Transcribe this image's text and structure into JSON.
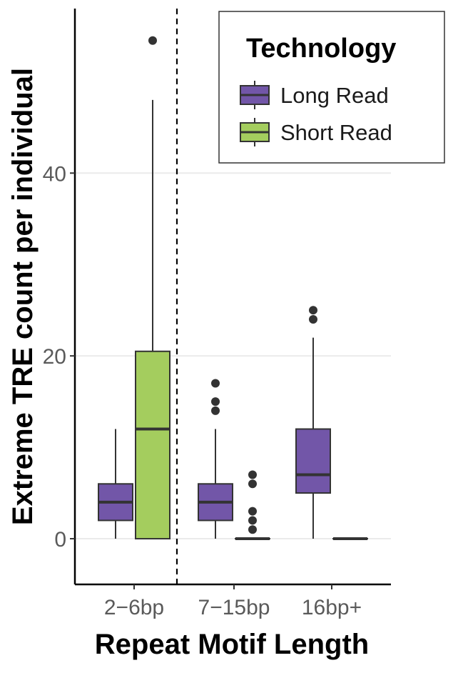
{
  "chart_data": {
    "type": "boxplot",
    "xlabel": "Repeat Motif Length",
    "ylabel": "Extreme TRE count per individual",
    "categories": [
      "2−6bp",
      "7−15bp",
      "16bp+"
    ],
    "ylim": [
      -5,
      58
    ],
    "yticks": [
      0,
      20,
      40
    ],
    "grid": true,
    "reference_line": {
      "style": "dashed",
      "between": [
        "2−6bp",
        "7−15bp"
      ]
    },
    "legend": {
      "title": "Technology",
      "placement": "top-right",
      "entries": [
        {
          "name": "Long Read",
          "color": "#7256a8"
        },
        {
          "name": "Short Read",
          "color": "#a4cd5e"
        }
      ]
    },
    "series": [
      {
        "name": "Long Read",
        "color": "#7256a8",
        "boxes": [
          {
            "category": "2−6bp",
            "whisker_low": 0,
            "q1": 2,
            "median": 4,
            "q3": 6,
            "whisker_high": 12,
            "outliers": []
          },
          {
            "category": "7−15bp",
            "whisker_low": 0,
            "q1": 2,
            "median": 4,
            "q3": 6,
            "whisker_high": 12,
            "outliers": [
              14,
              15,
              17
            ]
          },
          {
            "category": "16bp+",
            "whisker_low": 0,
            "q1": 5,
            "median": 7,
            "q3": 12,
            "whisker_high": 22,
            "outliers": [
              24,
              25
            ]
          }
        ]
      },
      {
        "name": "Short Read",
        "color": "#a4cd5e",
        "boxes": [
          {
            "category": "2−6bp",
            "whisker_low": 0,
            "q1": 0,
            "median": 12,
            "q3": 20.5,
            "whisker_high": 48,
            "outliers": [
              54.5
            ]
          },
          {
            "category": "7−15bp",
            "whisker_low": 0,
            "q1": 0,
            "median": 0,
            "q3": 0,
            "whisker_high": 0,
            "outliers": [
              1,
              2,
              3,
              6,
              7
            ]
          },
          {
            "category": "16bp+",
            "whisker_low": 0,
            "q1": 0,
            "median": 0,
            "q3": 0,
            "whisker_high": 0,
            "outliers": []
          }
        ]
      }
    ]
  }
}
